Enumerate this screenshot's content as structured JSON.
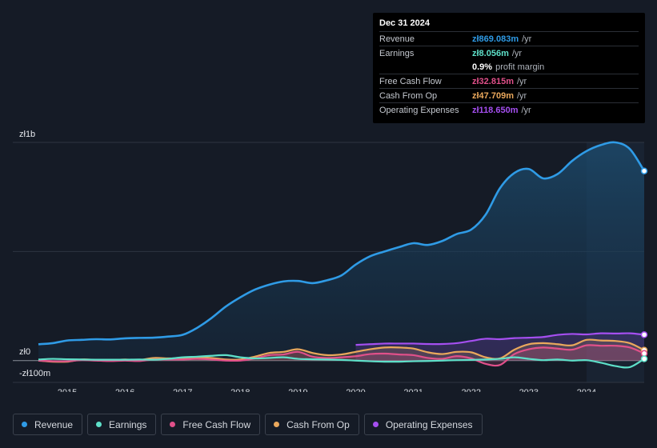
{
  "tooltip": {
    "date": "Dec 31 2024",
    "rows": [
      {
        "label": "Revenue",
        "value": "zł869.083m",
        "suffix": "/yr",
        "color": "#2f9be6"
      },
      {
        "label": "Earnings",
        "value": "zł8.056m",
        "suffix": "/yr",
        "color": "#5ee0c9"
      },
      {
        "label": "",
        "value": "0.9%",
        "suffix": "profit margin",
        "color": "#ffffff"
      },
      {
        "label": "Free Cash Flow",
        "value": "zł32.815m",
        "suffix": "/yr",
        "color": "#e0508a"
      },
      {
        "label": "Cash From Op",
        "value": "zł47.709m",
        "suffix": "/yr",
        "color": "#eaa85c"
      },
      {
        "label": "Operating Expenses",
        "value": "zł118.650m",
        "suffix": "/yr",
        "color": "#a54ff0"
      }
    ]
  },
  "legend": [
    {
      "label": "Revenue",
      "color": "#2f9be6"
    },
    {
      "label": "Earnings",
      "color": "#5ee0c9"
    },
    {
      "label": "Free Cash Flow",
      "color": "#e0508a"
    },
    {
      "label": "Cash From Op",
      "color": "#eaa85c"
    },
    {
      "label": "Operating Expenses",
      "color": "#a54ff0"
    }
  ],
  "chart_data": {
    "type": "area",
    "title": "",
    "xlabel": "",
    "ylabel": "",
    "y_tick_labels": [
      "zł1b",
      "zł0",
      "-zł100m"
    ],
    "ylim": [
      -100,
      1000
    ],
    "xlim": [
      2014.5,
      2025.0
    ],
    "x_ticks": [
      2015,
      2016,
      2017,
      2018,
      2019,
      2020,
      2021,
      2022,
      2023,
      2024
    ],
    "x_tick_labels": [
      "2015",
      "2016",
      "2017",
      "2018",
      "2019",
      "2020",
      "2021",
      "2022",
      "2023",
      "2024"
    ],
    "highlight_start": 2024.0,
    "series": [
      {
        "name": "Revenue",
        "color": "#2f9be6",
        "fill": true,
        "x": [
          2014.5,
          2014.75,
          2015.0,
          2015.25,
          2015.5,
          2015.75,
          2016.0,
          2016.25,
          2016.5,
          2016.75,
          2017.0,
          2017.25,
          2017.5,
          2017.75,
          2018.0,
          2018.25,
          2018.5,
          2018.75,
          2019.0,
          2019.25,
          2019.5,
          2019.75,
          2020.0,
          2020.25,
          2020.5,
          2020.75,
          2021.0,
          2021.25,
          2021.5,
          2021.75,
          2022.0,
          2022.25,
          2022.5,
          2022.75,
          2023.0,
          2023.25,
          2023.5,
          2023.75,
          2024.0,
          2024.25,
          2024.5,
          2024.75,
          2025.0
        ],
        "values": [
          75,
          80,
          92,
          95,
          98,
          97,
          102,
          104,
          105,
          110,
          118,
          150,
          195,
          248,
          290,
          325,
          348,
          363,
          365,
          355,
          368,
          390,
          440,
          478,
          500,
          520,
          538,
          530,
          548,
          580,
          600,
          668,
          790,
          860,
          878,
          835,
          855,
          915,
          960,
          988,
          1000,
          970,
          869
        ]
      },
      {
        "name": "Operating Expenses",
        "color": "#a54ff0",
        "fill": true,
        "x": [
          2020.0,
          2020.25,
          2020.5,
          2020.75,
          2021.0,
          2021.25,
          2021.5,
          2021.75,
          2022.0,
          2022.25,
          2022.5,
          2022.75,
          2023.0,
          2023.25,
          2023.5,
          2023.75,
          2024.0,
          2024.25,
          2024.5,
          2024.75,
          2025.0
        ],
        "values": [
          72,
          75,
          78,
          78,
          78,
          76,
          76,
          80,
          90,
          100,
          98,
          103,
          105,
          108,
          118,
          122,
          120,
          125,
          124,
          125,
          118.65
        ]
      },
      {
        "name": "Cash From Op",
        "color": "#eaa85c",
        "fill": true,
        "x": [
          2014.5,
          2014.75,
          2015.0,
          2015.25,
          2015.5,
          2015.75,
          2016.0,
          2016.25,
          2016.5,
          2016.75,
          2017.0,
          2017.25,
          2017.5,
          2017.75,
          2018.0,
          2018.25,
          2018.5,
          2018.75,
          2019.0,
          2019.25,
          2019.5,
          2019.75,
          2020.0,
          2020.25,
          2020.5,
          2020.75,
          2021.0,
          2021.25,
          2021.5,
          2021.75,
          2022.0,
          2022.25,
          2022.5,
          2022.75,
          2023.0,
          2023.25,
          2023.5,
          2023.75,
          2024.0,
          2024.25,
          2024.5,
          2024.75,
          2025.0
        ],
        "values": [
          0,
          -5,
          -5,
          5,
          3,
          2,
          5,
          3,
          12,
          10,
          10,
          15,
          12,
          5,
          5,
          18,
          35,
          40,
          52,
          35,
          25,
          28,
          40,
          52,
          60,
          60,
          55,
          38,
          30,
          40,
          38,
          15,
          10,
          50,
          75,
          80,
          75,
          70,
          95,
          92,
          90,
          80,
          47.7
        ]
      },
      {
        "name": "Free Cash Flow",
        "color": "#e0508a",
        "fill": true,
        "x": [
          2014.5,
          2014.75,
          2015.0,
          2015.25,
          2015.5,
          2015.75,
          2016.0,
          2016.25,
          2016.5,
          2016.75,
          2017.0,
          2017.25,
          2017.5,
          2017.75,
          2018.0,
          2018.25,
          2018.5,
          2018.75,
          2019.0,
          2019.25,
          2019.5,
          2019.75,
          2020.0,
          2020.25,
          2020.5,
          2020.75,
          2021.0,
          2021.25,
          2021.5,
          2021.75,
          2022.0,
          2022.25,
          2022.5,
          2022.75,
          2023.0,
          2023.25,
          2023.5,
          2023.75,
          2024.0,
          2024.25,
          2024.5,
          2024.75,
          2025.0
        ],
        "values": [
          0,
          -3,
          -3,
          2,
          0,
          -2,
          0,
          -2,
          5,
          5,
          5,
          8,
          5,
          0,
          0,
          10,
          25,
          28,
          40,
          18,
          12,
          15,
          20,
          30,
          32,
          28,
          25,
          12,
          8,
          20,
          10,
          -15,
          -20,
          30,
          52,
          60,
          55,
          50,
          70,
          68,
          68,
          60,
          32.8
        ]
      },
      {
        "name": "Earnings",
        "color": "#5ee0c9",
        "fill": false,
        "x": [
          2014.5,
          2014.75,
          2015.0,
          2015.25,
          2015.5,
          2015.75,
          2016.0,
          2016.25,
          2016.5,
          2016.75,
          2017.0,
          2017.25,
          2017.5,
          2017.75,
          2018.0,
          2018.25,
          2018.5,
          2018.75,
          2019.0,
          2019.25,
          2019.5,
          2019.75,
          2020.0,
          2020.25,
          2020.5,
          2020.75,
          2021.0,
          2021.25,
          2021.5,
          2021.75,
          2022.0,
          2022.25,
          2022.5,
          2022.75,
          2023.0,
          2023.25,
          2023.5,
          2023.75,
          2024.0,
          2024.25,
          2024.5,
          2024.75,
          2025.0
        ],
        "values": [
          5,
          8,
          6,
          5,
          4,
          4,
          4,
          5,
          4,
          8,
          15,
          18,
          22,
          25,
          15,
          10,
          12,
          15,
          8,
          6,
          5,
          3,
          0,
          -3,
          -5,
          -5,
          -3,
          -2,
          0,
          2,
          3,
          5,
          8,
          15,
          8,
          2,
          5,
          0,
          2,
          -10,
          -25,
          -30,
          8.06
        ]
      }
    ]
  }
}
